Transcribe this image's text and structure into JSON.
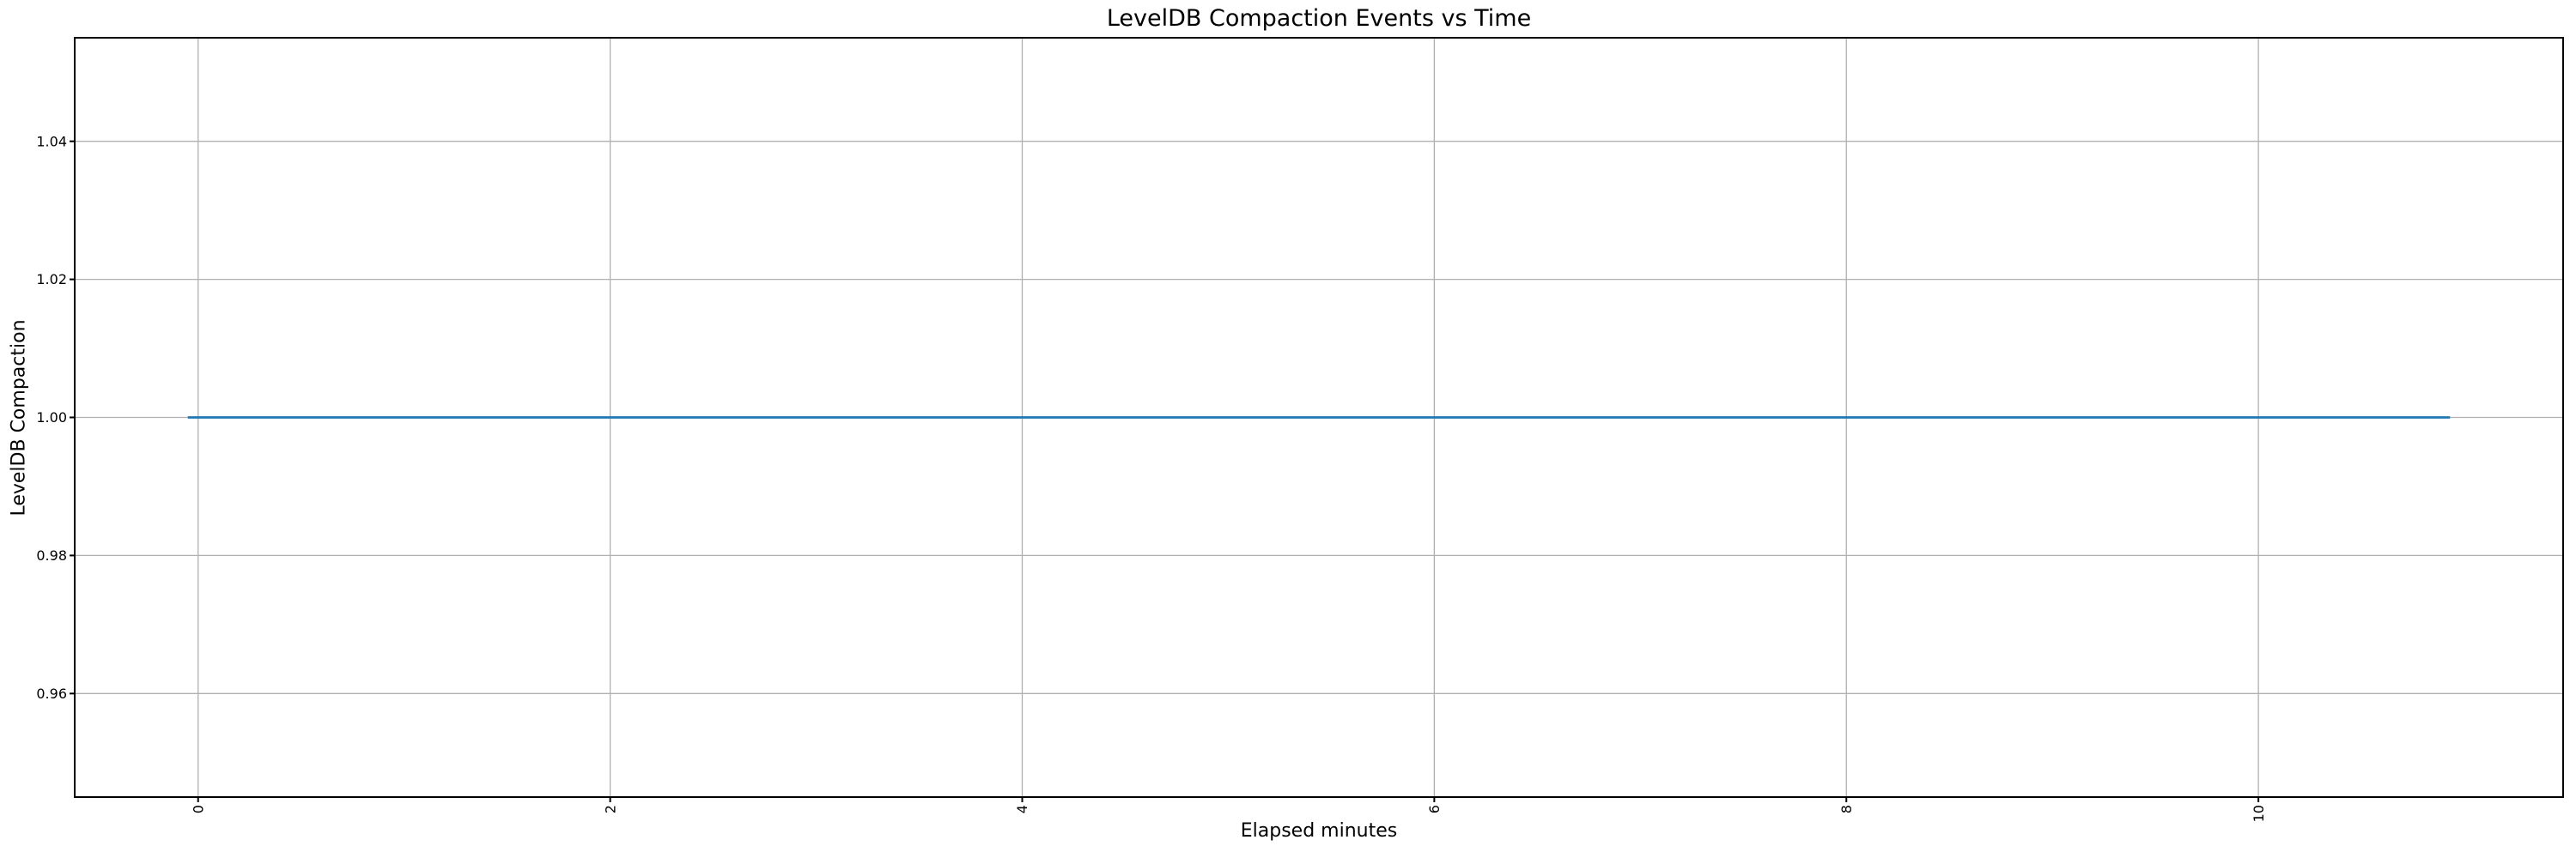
{
  "figure": {
    "background": "#ffffff"
  },
  "chart_data": {
    "type": "line",
    "title": "LevelDB Compaction Events vs Time",
    "xlabel": "Elapsed minutes",
    "ylabel": "LevelDB Compaction",
    "xlim": [
      -0.599,
      11.479
    ],
    "ylim": [
      0.945,
      1.055
    ],
    "xticks": {
      "values": [
        0,
        2,
        4,
        6,
        8,
        10
      ],
      "labels": [
        "0",
        "2",
        "4",
        "6",
        "8",
        "10"
      ],
      "rotation": 90
    },
    "yticks": {
      "values": [
        0.96,
        0.98,
        1.0,
        1.02,
        1.04
      ],
      "labels": [
        "0.96",
        "0.98",
        "1.00",
        "1.02",
        "1.04"
      ]
    },
    "grid": true,
    "legend": false,
    "colors": {
      "line": "#1f77b4",
      "grid": "#b0b0b0",
      "spine": "#000000",
      "text": "#000000",
      "background": "#ffffff"
    },
    "series": [
      {
        "name": "LevelDB Compaction",
        "color": "#1f77b4",
        "x": [
          -0.05,
          10.93
        ],
        "y": [
          1.0,
          1.0
        ]
      }
    ]
  }
}
